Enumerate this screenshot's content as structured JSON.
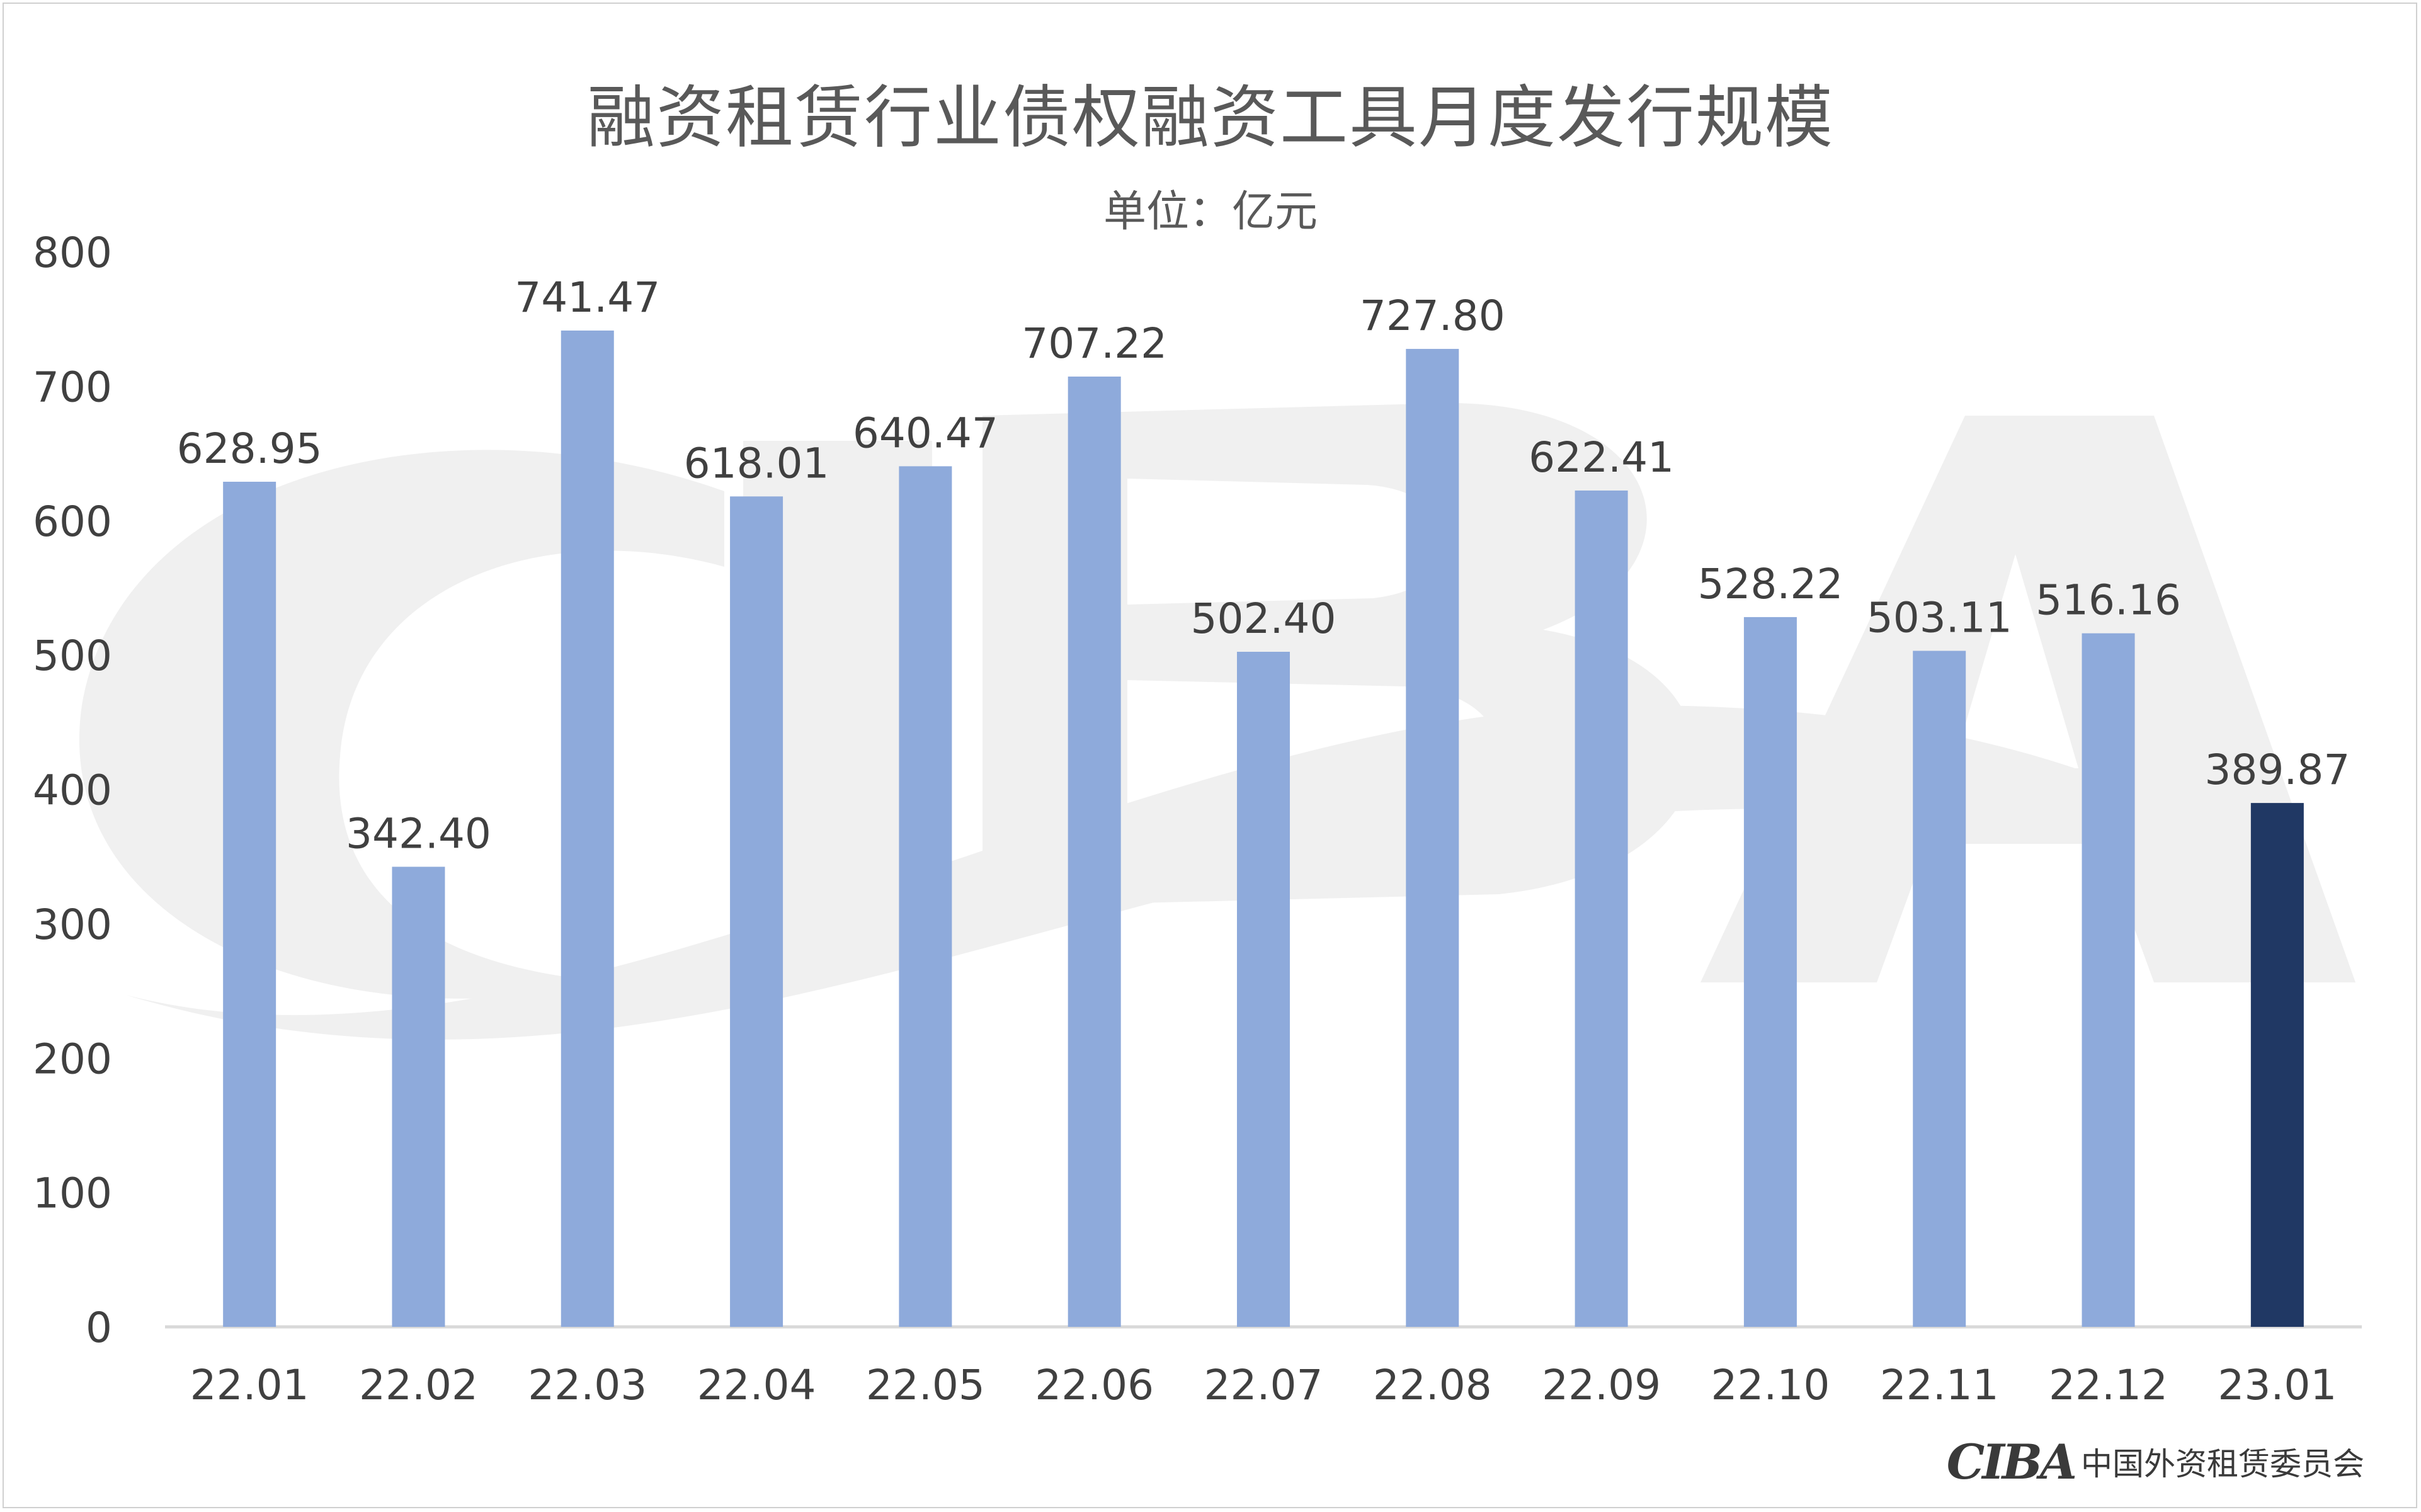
{
  "footer": {
    "logo_text": "CIBA",
    "org_name": "中国外资租赁委员会"
  },
  "colors": {
    "bar": "#8eaadb",
    "bar_highlight": "#203864",
    "axis": "#d9d9d9",
    "text": "#404040",
    "watermark": "#f2f2f2"
  },
  "chart_data": {
    "type": "bar",
    "title": "融资租赁行业债权融资工具月度发行规模",
    "subtitle": "单位：亿元",
    "categories": [
      "22.01",
      "22.02",
      "22.03",
      "22.04",
      "22.05",
      "22.06",
      "22.07",
      "22.08",
      "22.09",
      "22.10",
      "22.11",
      "22.12",
      "23.01"
    ],
    "values": [
      628.95,
      342.4,
      741.47,
      618.01,
      640.47,
      707.22,
      502.4,
      727.8,
      622.41,
      528.22,
      503.11,
      516.16,
      389.87
    ],
    "value_labels": [
      "628.95",
      "342.40",
      "741.47",
      "618.01",
      "640.47",
      "707.22",
      "502.40",
      "727.80",
      "622.41",
      "528.22",
      "503.11",
      "516.16",
      "389.87"
    ],
    "highlight_index": 12,
    "ylim": [
      0,
      800
    ],
    "yticks": [
      "0",
      "100",
      "200",
      "300",
      "400",
      "500",
      "600",
      "700",
      "800"
    ],
    "grid": false,
    "legend": "none"
  }
}
